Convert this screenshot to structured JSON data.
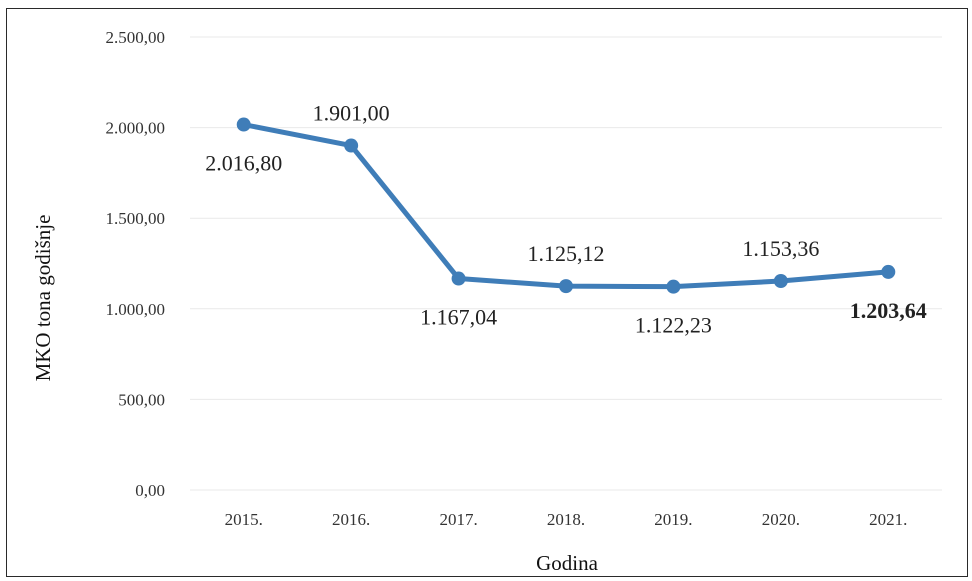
{
  "chart_data": {
    "type": "line",
    "categories": [
      "2015.",
      "2016.",
      "2017.",
      "2018.",
      "2019.",
      "2020.",
      "2021."
    ],
    "series": [
      {
        "values": [
          2016.8,
          1901.0,
          1167.04,
          1125.12,
          1122.23,
          1153.36,
          1203.64
        ],
        "labels": [
          "2.016,80",
          "1.901,00",
          "1.167,04",
          "1.125,12",
          "1.122,23",
          "1.153,36",
          "1.203,64"
        ],
        "label_positions": [
          "below",
          "above",
          "below",
          "above",
          "below",
          "above",
          "below"
        ],
        "bold_last_label": true,
        "color": "#3f7db8"
      }
    ],
    "title": "",
    "xlabel": "Godina",
    "ylabel": "MKO tona godišnje",
    "ylim": [
      0,
      2500
    ],
    "yticks": [
      0,
      500,
      1000,
      1500,
      2000,
      2500
    ],
    "ytick_labels": [
      "0,00",
      "500,00",
      "1.000,00",
      "1.500,00",
      "2.000,00",
      "2.500,00"
    ],
    "grid": true,
    "legend": "none",
    "colors": {
      "line": "#3f7db8",
      "grid": "#e9e9e9",
      "border": "#2a2a2a"
    }
  }
}
